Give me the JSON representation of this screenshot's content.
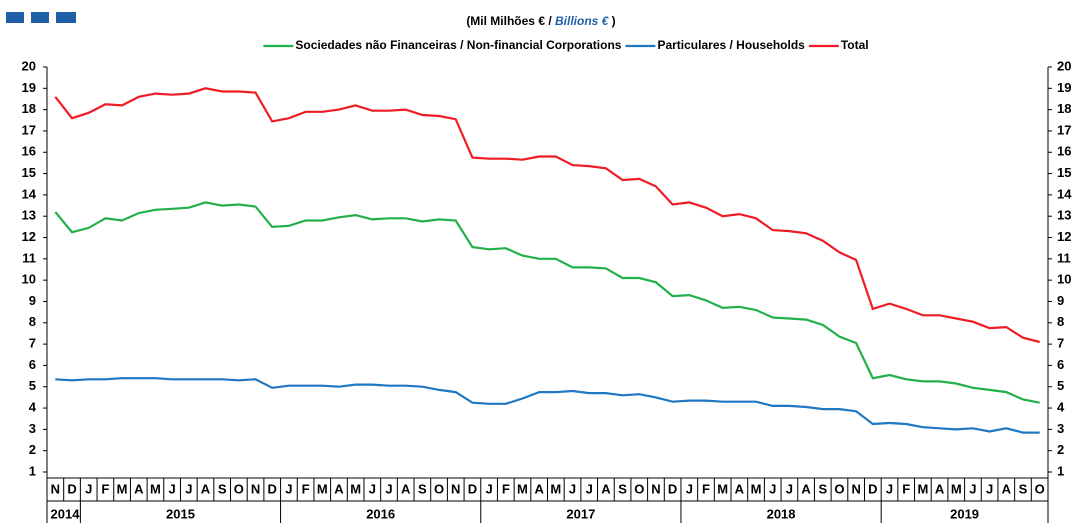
{
  "chart_data": {
    "type": "line",
    "subtitle": [
      "(Mil Milhões € / ",
      "Billions €",
      " )"
    ],
    "categories": [
      "N",
      "D",
      "J",
      "F",
      "M",
      "A",
      "M",
      "J",
      "J",
      "A",
      "S",
      "O",
      "N",
      "D",
      "J",
      "F",
      "M",
      "A",
      "M",
      "J",
      "J",
      "A",
      "S",
      "O",
      "N",
      "D",
      "J",
      "F",
      "M",
      "A",
      "M",
      "J",
      "J",
      "A",
      "S",
      "O",
      "N",
      "D",
      "J",
      "F",
      "M",
      "A",
      "M",
      "J",
      "J",
      "A",
      "S",
      "O",
      "N",
      "D",
      "J",
      "F",
      "M",
      "A",
      "M",
      "J",
      "J",
      "A",
      "S",
      "O"
    ],
    "years": [
      "2014",
      "2015",
      "2016",
      "2017",
      "2018",
      "2019"
    ],
    "series": [
      {
        "name": "Sociedades não Financeiras / Non-financial Corporations",
        "color": "#22b04a",
        "values": [
          13.2,
          12.25,
          12.45,
          12.9,
          12.8,
          13.15,
          13.3,
          13.35,
          13.4,
          13.65,
          13.5,
          13.55,
          13.45,
          12.5,
          12.55,
          12.8,
          12.8,
          12.95,
          13.05,
          12.85,
          12.9,
          12.9,
          12.75,
          12.85,
          12.8,
          11.55,
          11.45,
          11.5,
          11.15,
          11.0,
          11.0,
          10.6,
          10.6,
          10.55,
          10.1,
          10.1,
          9.9,
          9.25,
          9.3,
          9.05,
          8.7,
          8.75,
          8.6,
          8.25,
          8.2,
          8.15,
          7.9,
          7.35,
          7.05,
          5.4,
          5.55,
          5.35,
          5.25,
          5.25,
          5.15,
          4.95,
          4.85,
          4.75,
          4.4,
          4.25
        ]
      },
      {
        "name": "Particulares / Households",
        "color": "#1f78c1",
        "values": [
          5.35,
          5.3,
          5.35,
          5.35,
          5.4,
          5.4,
          5.4,
          5.35,
          5.35,
          5.35,
          5.35,
          5.3,
          5.35,
          4.95,
          5.05,
          5.05,
          5.05,
          5.0,
          5.1,
          5.1,
          5.05,
          5.05,
          5.0,
          4.85,
          4.75,
          4.25,
          4.2,
          4.2,
          4.45,
          4.75,
          4.75,
          4.8,
          4.7,
          4.7,
          4.6,
          4.65,
          4.5,
          4.3,
          4.35,
          4.35,
          4.3,
          4.3,
          4.3,
          4.1,
          4.1,
          4.05,
          3.95,
          3.95,
          3.85,
          3.25,
          3.3,
          3.25,
          3.1,
          3.05,
          3.0,
          3.05,
          2.9,
          3.05,
          2.85,
          2.85
        ]
      },
      {
        "name": "Total",
        "color": "#ee1c24",
        "values": [
          18.6,
          17.6,
          17.85,
          18.25,
          18.2,
          18.6,
          18.75,
          18.7,
          18.75,
          19.0,
          18.85,
          18.85,
          18.8,
          17.45,
          17.6,
          17.9,
          17.9,
          18.0,
          18.2,
          17.95,
          17.95,
          18.0,
          17.75,
          17.7,
          17.55,
          15.75,
          15.7,
          15.7,
          15.65,
          15.8,
          15.8,
          15.4,
          15.35,
          15.25,
          14.7,
          14.75,
          14.4,
          13.55,
          13.65,
          13.4,
          13.0,
          13.1,
          12.9,
          12.35,
          12.3,
          12.2,
          11.85,
          11.3,
          10.95,
          8.65,
          8.9,
          8.65,
          8.35,
          8.35,
          8.2,
          8.05,
          7.75,
          7.8,
          7.3,
          7.1
        ]
      }
    ],
    "ylim": [
      1,
      20
    ],
    "yticks": [
      1,
      2,
      3,
      4,
      5,
      6,
      7,
      8,
      9,
      10,
      11,
      12,
      13,
      14,
      15,
      16,
      17,
      18,
      19,
      20
    ]
  }
}
